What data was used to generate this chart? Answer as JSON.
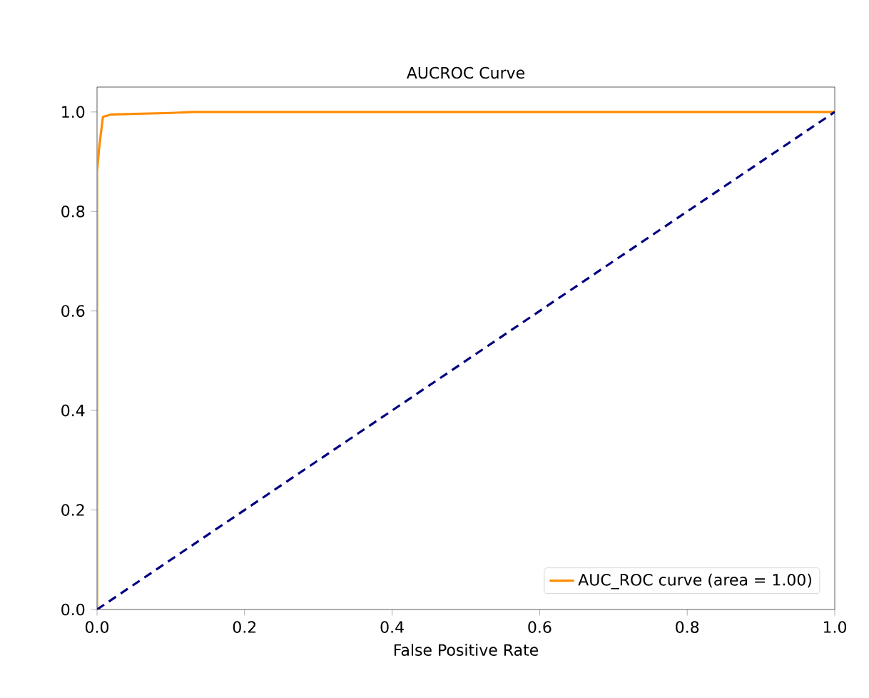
{
  "chart_data": {
    "type": "line",
    "title": "AUCROC Curve",
    "xlabel": "False Positive Rate",
    "xlim": [
      0,
      1.0
    ],
    "ylim": [
      0,
      1.05
    ],
    "xticks": [
      {
        "value": 0,
        "label": "0.0"
      },
      0.2,
      0.4,
      0.6,
      0.8,
      {
        "value": 1,
        "label": "1.0"
      }
    ],
    "yticks": [
      {
        "value": 0,
        "label": "0.0"
      },
      0.2,
      0.4,
      0.6,
      0.8,
      {
        "value": 1,
        "label": "1.0"
      }
    ],
    "legend": "bottom right",
    "marker": "none",
    "series": [
      {
        "name": "AUC_ROC curve (area = 1.00)",
        "color": "#ff8c00",
        "line_style": "solid",
        "x": [
          0,
          0,
          0.003,
          0.008,
          0.02,
          0.1,
          0.13,
          1.0
        ],
        "values": [
          0,
          0.88,
          0.93,
          0.99,
          0.995,
          0.998,
          1.0,
          1.0
        ]
      },
      {
        "color": "#000080",
        "line_style": "dashed",
        "x": [
          0,
          1
        ],
        "values": [
          0,
          1
        ]
      }
    ]
  }
}
